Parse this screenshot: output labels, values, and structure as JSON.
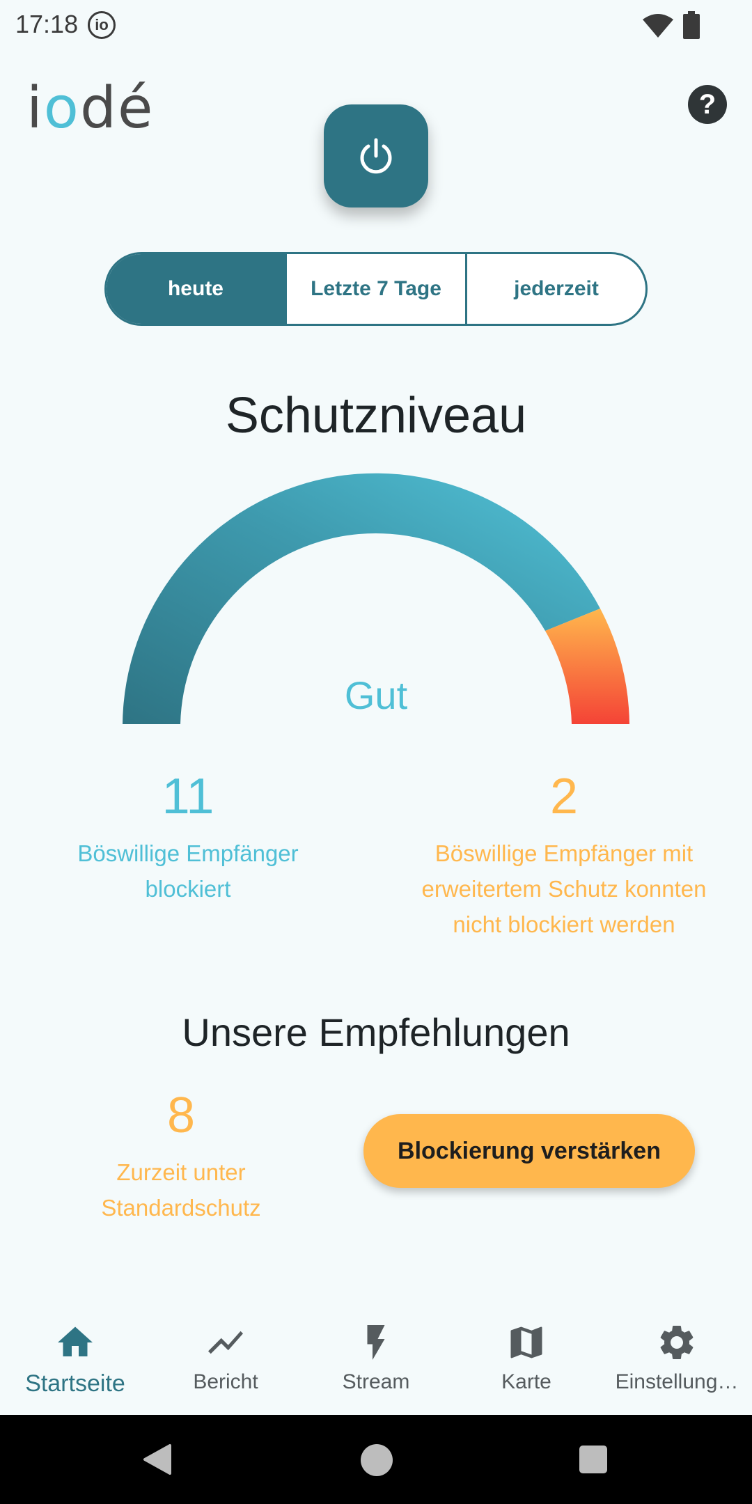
{
  "status_bar": {
    "time": "17:18",
    "notif_icon_text": "io"
  },
  "header": {
    "logo_prefix": "i",
    "logo_o": "o",
    "logo_suffix": "dé",
    "help_label": "?"
  },
  "tabs": [
    {
      "label": "heute",
      "active": true
    },
    {
      "label": "Letzte 7 Tage",
      "active": false
    },
    {
      "label": "jederzeit",
      "active": false
    }
  ],
  "protection": {
    "title": "Schutzniveau",
    "level_label": "Gut"
  },
  "stats": {
    "blocked": {
      "value": "11",
      "label": "Böswillige Empfänger blockiert"
    },
    "not_blocked": {
      "value": "2",
      "label": "Böswillige Empfänger mit erweitertem Schutz konnten nicht blockiert werden"
    }
  },
  "recommendations": {
    "title": "Unsere Empfehlungen",
    "standard": {
      "value": "8",
      "label": "Zurzeit unter Standardschutz"
    },
    "boost_button": "Blockierung verstärken"
  },
  "bottom_nav": [
    {
      "label": "Startseite",
      "icon": "home-icon",
      "active": true
    },
    {
      "label": "Bericht",
      "icon": "chart-line-icon",
      "active": false
    },
    {
      "label": "Stream",
      "icon": "lightning-icon",
      "active": false
    },
    {
      "label": "Karte",
      "icon": "map-icon",
      "active": false
    },
    {
      "label": "Einstellung…",
      "icon": "gear-icon",
      "active": false
    }
  ],
  "colors": {
    "primary": "#2E7484",
    "accent_blue": "#4FBFD6",
    "accent_orange": "#FFB74D",
    "danger_red": "#F44336",
    "background": "#F4FAFB"
  }
}
